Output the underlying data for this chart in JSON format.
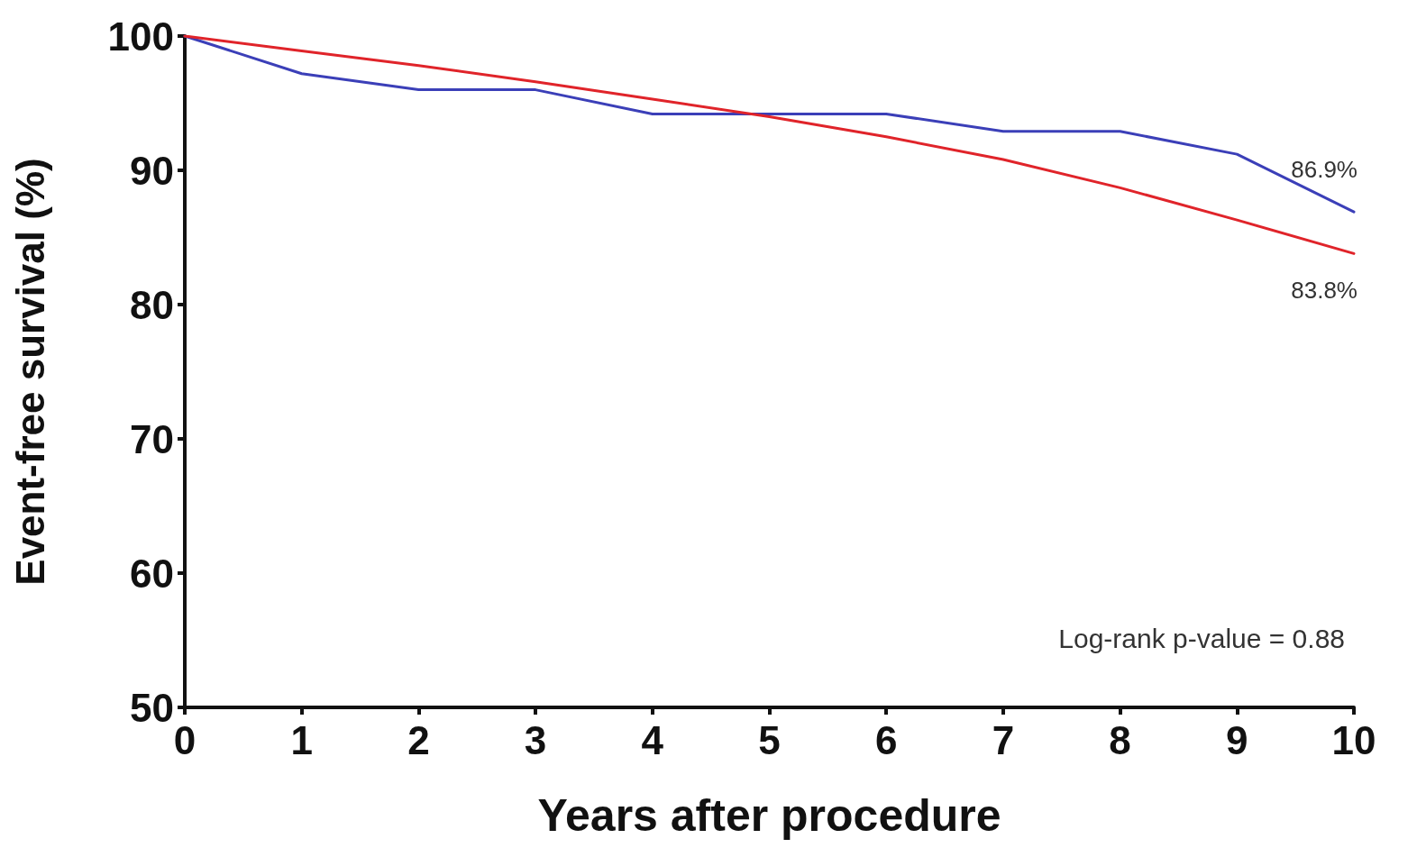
{
  "chart_data": {
    "type": "line",
    "xlabel": "Years after procedure",
    "ylabel": "Event-free survival (%)",
    "x": [
      0,
      1,
      2,
      3,
      4,
      5,
      6,
      7,
      8,
      9,
      10
    ],
    "series": [
      {
        "color": "#3b3fb8",
        "values": [
          100,
          97.2,
          96.0,
          96.0,
          94.2,
          94.2,
          94.2,
          92.9,
          92.9,
          91.2,
          86.9
        ]
      },
      {
        "color": "#e0242a",
        "values": [
          100,
          98.9,
          97.8,
          96.6,
          95.3,
          94.0,
          92.5,
          90.8,
          88.7,
          86.3,
          83.8
        ]
      }
    ],
    "xlim": [
      0,
      10
    ],
    "xticks": [
      0,
      1,
      2,
      3,
      4,
      5,
      6,
      7,
      8,
      9,
      10
    ],
    "ylim": [
      50,
      100
    ],
    "yticks": [
      50,
      60,
      70,
      80,
      90,
      100
    ],
    "marker": "none",
    "line_style": "solid",
    "annotations": [
      {
        "text": "86.9%",
        "x": 10,
        "y": 86.9
      },
      {
        "text": "83.8%",
        "x": 10,
        "y": 83.8
      },
      "Log-rank p-value = 0.88"
    ]
  }
}
